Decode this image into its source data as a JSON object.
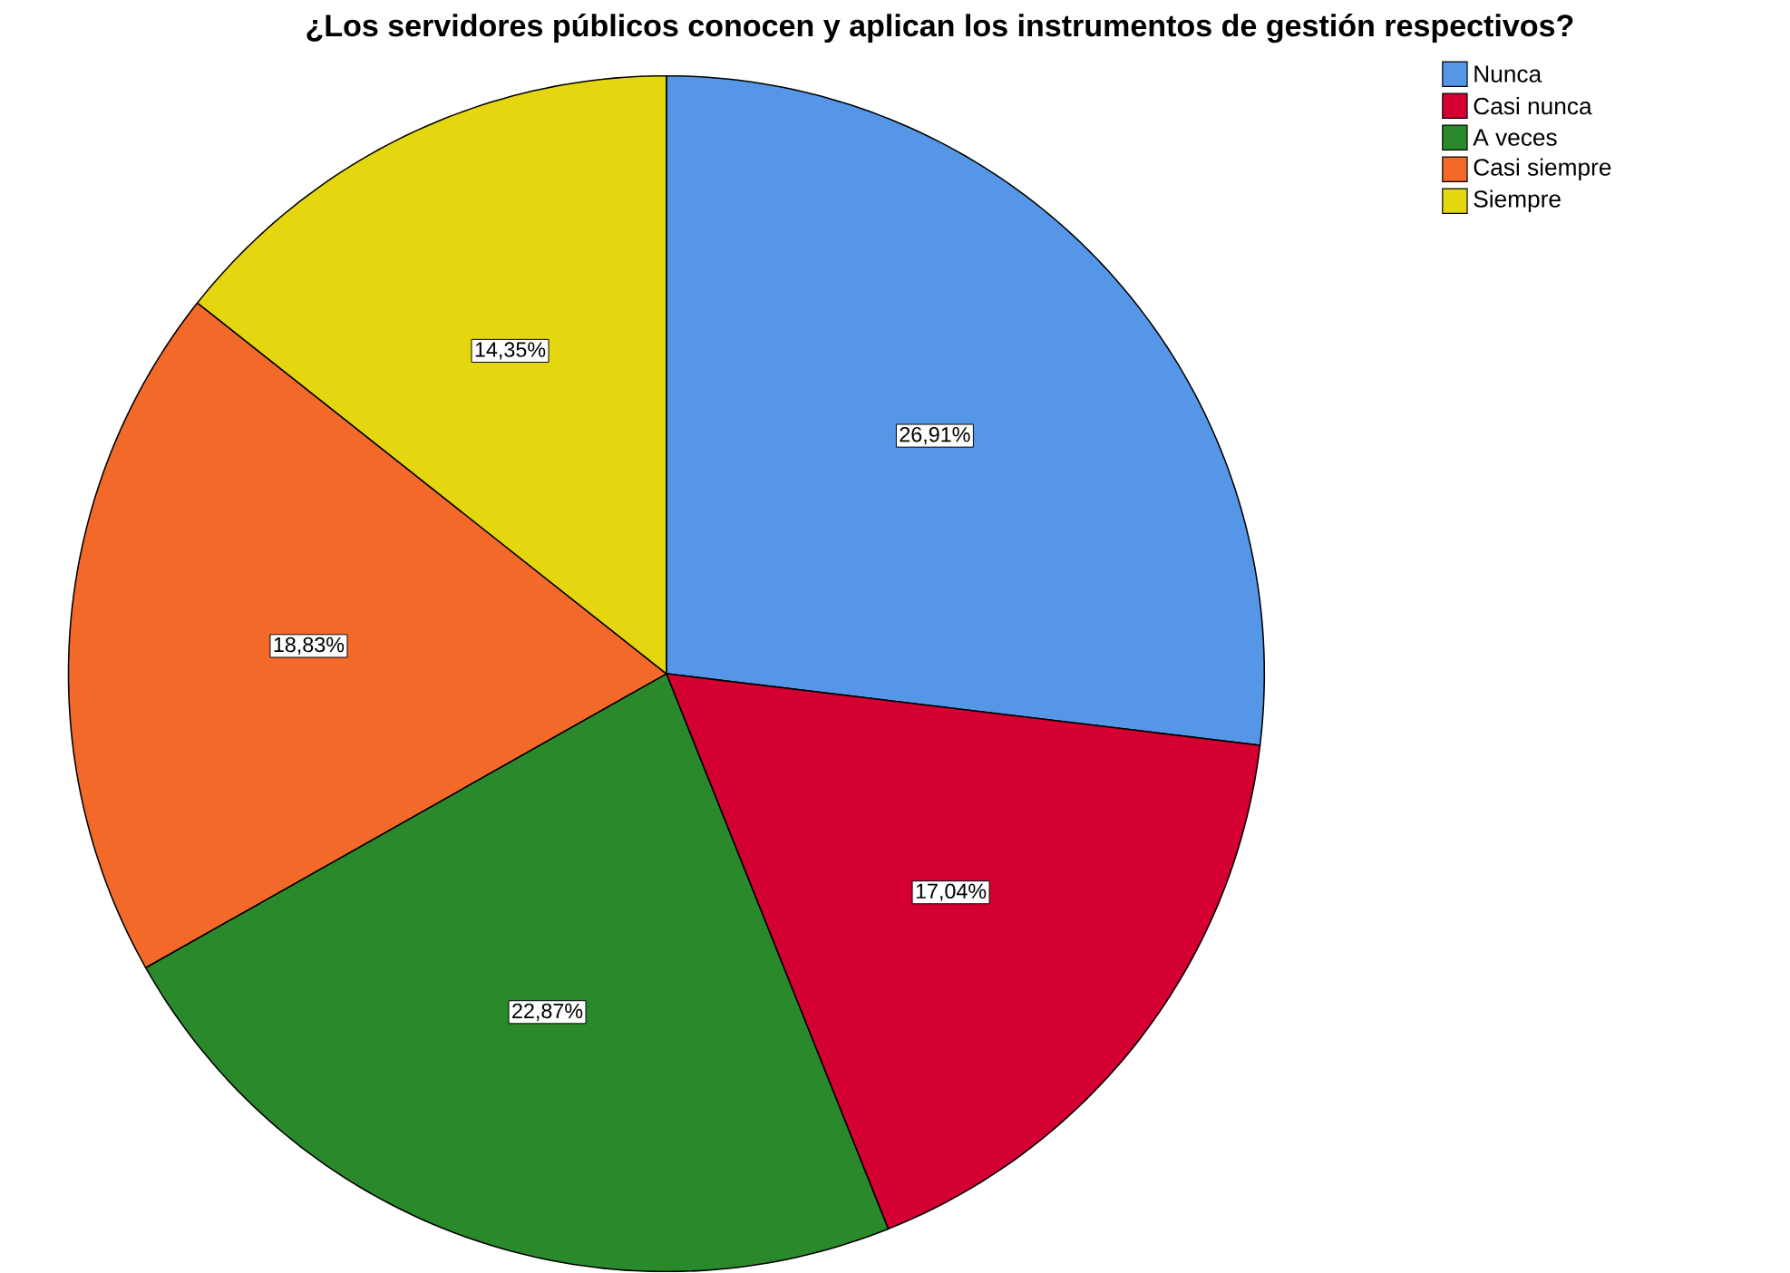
{
  "chart_data": {
    "type": "pie",
    "title": "¿Los servidores públicos conocen y aplican los instrumentos de gestión respectivos?",
    "categories": [
      "Nunca",
      "Casi nunca",
      "A veces",
      "Casi siempre",
      "Siempre"
    ],
    "values": [
      26.91,
      17.04,
      22.87,
      18.83,
      14.35
    ],
    "colors": [
      "#5596e6",
      "#d50032",
      "#2a8a2b",
      "#f2692a",
      "#e4d710"
    ],
    "value_labels": [
      "26,91%",
      "17,04%",
      "22,87%",
      "18,83%",
      "14,35%"
    ],
    "legend": "top right"
  }
}
